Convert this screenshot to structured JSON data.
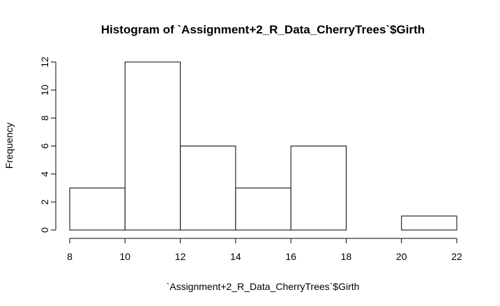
{
  "chart_data": {
    "type": "bar",
    "title": "Histogram of `Assignment+2_R_Data_CherryTrees`$Girth",
    "xlabel": "`Assignment+2_R_Data_CherryTrees`$Girth",
    "ylabel": "Frequency",
    "bins": [
      {
        "start": 8,
        "end": 10,
        "value": 3
      },
      {
        "start": 10,
        "end": 12,
        "value": 12
      },
      {
        "start": 12,
        "end": 14,
        "value": 6
      },
      {
        "start": 14,
        "end": 16,
        "value": 3
      },
      {
        "start": 16,
        "end": 18,
        "value": 6
      },
      {
        "start": 18,
        "end": 20,
        "value": 0
      },
      {
        "start": 20,
        "end": 22,
        "value": 1
      }
    ],
    "xlim": [
      8,
      22
    ],
    "ylim": [
      0,
      12
    ],
    "x_ticks": [
      8,
      10,
      12,
      14,
      16,
      18,
      20,
      22
    ],
    "y_ticks": [
      0,
      2,
      4,
      6,
      8,
      10,
      12
    ],
    "grid": false,
    "legend": "none",
    "colors": {
      "bar_fill": "#ffffff",
      "bar_stroke": "#000000",
      "background": "#ffffff"
    }
  }
}
